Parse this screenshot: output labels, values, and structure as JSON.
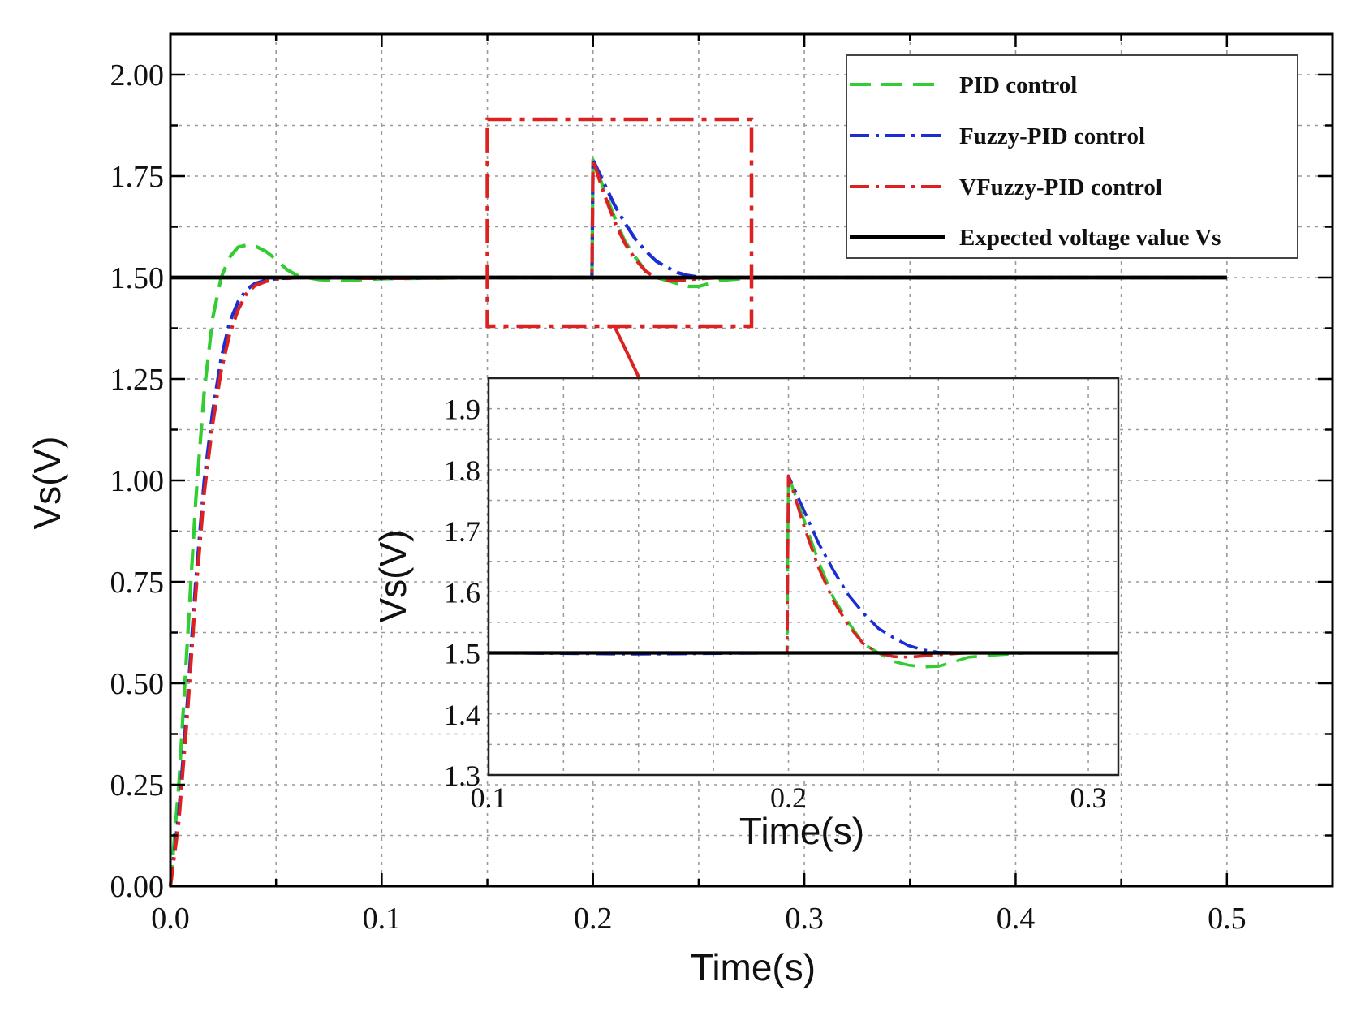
{
  "chart_data": [
    {
      "type": "line",
      "panel": "main",
      "xlabel": "Time(s)",
      "ylabel": "Vs(V)",
      "xlim": [
        0.0,
        0.55
      ],
      "ylim": [
        0.0,
        2.1
      ],
      "xticks": [
        0.0,
        0.1,
        0.2,
        0.3,
        0.4,
        0.5
      ],
      "xtick_labels": [
        "0.0",
        "0.1",
        "0.2",
        "0.3",
        "0.4",
        "0.5"
      ],
      "yticks": [
        0.0,
        0.25,
        0.5,
        0.75,
        1.0,
        1.25,
        1.5,
        1.75,
        2.0
      ],
      "ytick_labels": [
        "0.00",
        "0.25",
        "0.50",
        "0.75",
        "1.00",
        "1.25",
        "1.50",
        "1.75",
        "2.00"
      ],
      "grid": true,
      "legend_position": "top-right",
      "series": [
        {
          "name": "PID control",
          "color": "#33cc33",
          "style": "dashed",
          "x": [
            0.0,
            0.004,
            0.008,
            0.012,
            0.016,
            0.02,
            0.024,
            0.028,
            0.032,
            0.036,
            0.04,
            0.045,
            0.05,
            0.055,
            0.06,
            0.07,
            0.08,
            0.1,
            0.15,
            0.1995,
            0.2,
            0.205,
            0.21,
            0.215,
            0.22,
            0.225,
            0.23,
            0.24,
            0.245,
            0.25,
            0.255,
            0.26,
            0.27,
            0.28,
            0.3,
            0.4,
            0.5
          ],
          "y": [
            0.0,
            0.25,
            0.6,
            0.95,
            1.22,
            1.4,
            1.5,
            1.55,
            1.575,
            1.58,
            1.578,
            1.565,
            1.545,
            1.52,
            1.505,
            1.495,
            1.492,
            1.497,
            1.5,
            1.5,
            1.79,
            1.72,
            1.65,
            1.59,
            1.55,
            1.515,
            1.5,
            1.485,
            1.478,
            1.478,
            1.485,
            1.493,
            1.497,
            1.5,
            1.5,
            1.5,
            1.5
          ]
        },
        {
          "name": "Fuzzy-PID control",
          "color": "#1a2ed4",
          "style": "dashdot",
          "x": [
            0.0,
            0.004,
            0.008,
            0.012,
            0.016,
            0.02,
            0.024,
            0.028,
            0.032,
            0.036,
            0.04,
            0.045,
            0.05,
            0.06,
            0.07,
            0.1,
            0.15,
            0.1995,
            0.2,
            0.205,
            0.21,
            0.215,
            0.22,
            0.225,
            0.23,
            0.235,
            0.24,
            0.245,
            0.25,
            0.26,
            0.3,
            0.4,
            0.5
          ],
          "y": [
            0.0,
            0.18,
            0.45,
            0.75,
            1.0,
            1.17,
            1.3,
            1.39,
            1.44,
            1.47,
            1.485,
            1.493,
            1.497,
            1.5,
            1.5,
            1.498,
            1.5,
            1.5,
            1.79,
            1.735,
            1.68,
            1.635,
            1.595,
            1.565,
            1.54,
            1.525,
            1.512,
            1.505,
            1.501,
            1.5,
            1.5,
            1.5,
            1.5
          ]
        },
        {
          "name": "VFuzzy-PID control",
          "color": "#dd2020",
          "style": "dashdot",
          "x": [
            0.0,
            0.004,
            0.008,
            0.012,
            0.016,
            0.02,
            0.024,
            0.028,
            0.032,
            0.036,
            0.04,
            0.045,
            0.05,
            0.06,
            0.07,
            0.1,
            0.15,
            0.1995,
            0.2,
            0.205,
            0.21,
            0.215,
            0.22,
            0.225,
            0.23,
            0.235,
            0.24,
            0.245,
            0.25,
            0.26,
            0.3,
            0.4,
            0.5
          ],
          "y": [
            0.0,
            0.16,
            0.42,
            0.72,
            0.97,
            1.14,
            1.27,
            1.36,
            1.42,
            1.46,
            1.48,
            1.49,
            1.496,
            1.5,
            1.5,
            1.498,
            1.5,
            1.5,
            1.79,
            1.71,
            1.64,
            1.585,
            1.545,
            1.515,
            1.5,
            1.494,
            1.493,
            1.495,
            1.497,
            1.5,
            1.5,
            1.5,
            1.5
          ]
        },
        {
          "name": "Expected voltage value Vs",
          "color": "#000000",
          "style": "solid",
          "x": [
            0.0,
            0.5
          ],
          "y": [
            1.5,
            1.5
          ]
        }
      ]
    },
    {
      "type": "line",
      "panel": "inset",
      "xlabel": "Time(s)",
      "ylabel": "Vs(V)",
      "xlim": [
        0.1,
        0.31
      ],
      "ylim": [
        1.3,
        1.95
      ],
      "xticks": [
        0.1,
        0.2,
        0.3
      ],
      "xtick_labels": [
        "0.1",
        "0.2",
        "0.3"
      ],
      "yticks": [
        1.3,
        1.4,
        1.5,
        1.6,
        1.7,
        1.8,
        1.9
      ],
      "ytick_labels": [
        "1.3",
        "1.4",
        "1.5",
        "1.6",
        "1.7",
        "1.8",
        "1.9"
      ],
      "grid": true,
      "series": [
        {
          "name": "PID control",
          "color": "#33cc33",
          "style": "dashed",
          "x": [
            0.1,
            0.15,
            0.1995,
            0.2,
            0.205,
            0.21,
            0.215,
            0.22,
            0.225,
            0.23,
            0.235,
            0.24,
            0.245,
            0.25,
            0.255,
            0.26,
            0.27,
            0.28,
            0.31
          ],
          "y": [
            1.5,
            1.5,
            1.5,
            1.79,
            1.72,
            1.65,
            1.59,
            1.55,
            1.515,
            1.5,
            1.486,
            1.48,
            1.477,
            1.478,
            1.485,
            1.493,
            1.497,
            1.5,
            1.5
          ]
        },
        {
          "name": "Fuzzy-PID control",
          "color": "#1a2ed4",
          "style": "dashdot",
          "x": [
            0.1,
            0.15,
            0.1995,
            0.2,
            0.205,
            0.21,
            0.215,
            0.22,
            0.225,
            0.23,
            0.235,
            0.24,
            0.245,
            0.25,
            0.26,
            0.31
          ],
          "y": [
            1.5,
            1.498,
            1.5,
            1.79,
            1.735,
            1.68,
            1.635,
            1.595,
            1.565,
            1.54,
            1.525,
            1.512,
            1.505,
            1.501,
            1.5,
            1.5
          ]
        },
        {
          "name": "VFuzzy-PID control",
          "color": "#dd2020",
          "style": "dashdot",
          "x": [
            0.1,
            0.15,
            0.1995,
            0.2,
            0.205,
            0.21,
            0.215,
            0.22,
            0.225,
            0.23,
            0.235,
            0.24,
            0.245,
            0.25,
            0.26,
            0.31
          ],
          "y": [
            1.5,
            1.5,
            1.5,
            1.79,
            1.71,
            1.64,
            1.585,
            1.545,
            1.515,
            1.5,
            1.494,
            1.493,
            1.495,
            1.497,
            1.5,
            1.5
          ]
        },
        {
          "name": "Expected voltage value Vs",
          "color": "#000000",
          "style": "solid",
          "x": [
            0.1,
            0.31
          ],
          "y": [
            1.5,
            1.5
          ]
        }
      ]
    }
  ],
  "zoom_box": {
    "x_range": [
      0.15,
      0.275
    ],
    "y_range": [
      1.38,
      1.89
    ],
    "color": "#dd2020"
  }
}
